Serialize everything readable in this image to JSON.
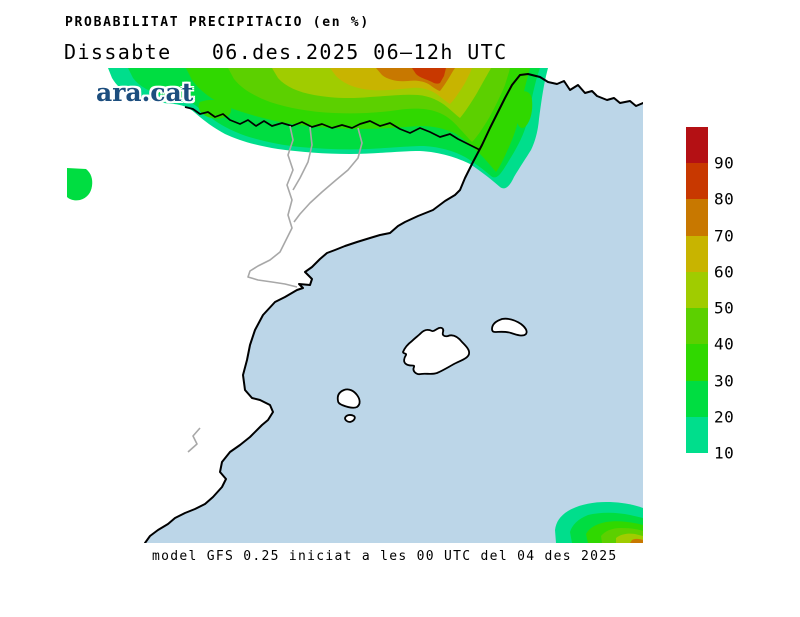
{
  "header": {
    "title": "PROBABILITAT PRECIPITACIO (en %)",
    "subtitle": "Dissabte   06.des.2025 06–12h UTC"
  },
  "watermark": {
    "logo_text": "ara.cat",
    "color": "#1d4e7e"
  },
  "footer": {
    "caption": "model GFS 0.25 iniciat a les 00 UTC del 04 des 2025"
  },
  "map": {
    "sea_color": "#bcd6e8",
    "land_color": "#ffffff",
    "coast_color": "#000000",
    "admin_border_color": "#a8a8a8"
  },
  "precip_levels": {
    "p10": "#00de8c",
    "p20": "#00dd41",
    "p30": "#30d800",
    "p40": "#5cd000",
    "p50": "#a0cc00",
    "p60": "#c8b400",
    "p70": "#c87800",
    "p80": "#c83800",
    "p90": "#b41014"
  },
  "colorbar": {
    "labels_top_to_bottom": [
      "90",
      "80",
      "70",
      "60",
      "50",
      "40",
      "30",
      "20",
      "10"
    ],
    "segments_top_to_bottom": [
      "#b41014",
      "#c83800",
      "#c87800",
      "#c8b400",
      "#a0cc00",
      "#5cd000",
      "#30d800",
      "#00dd41",
      "#00de8c"
    ]
  },
  "chart_data": {
    "type": "heatmap",
    "title": "PROBABILITAT PRECIPITACIO (en %)",
    "legend_values": [
      10,
      20,
      30,
      40,
      50,
      60,
      70,
      80,
      90
    ],
    "legend_position": "right",
    "regions": [
      {
        "name": "pyrenees-southern-france-band",
        "max_probability": 80
      },
      {
        "name": "west-edge-blob",
        "max_probability": 20
      },
      {
        "name": "southeast-corner-blob",
        "max_probability": 70
      }
    ]
  }
}
